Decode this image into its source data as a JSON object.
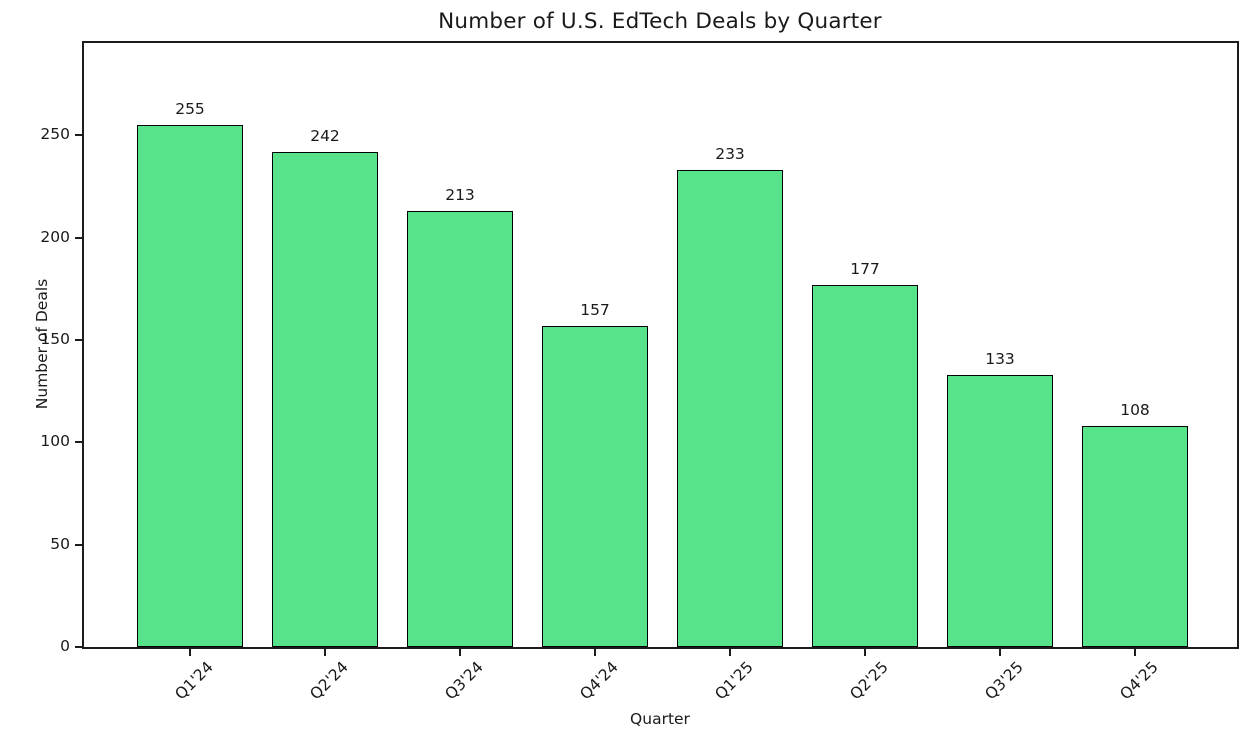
{
  "chart_data": {
    "type": "bar",
    "title": "Number of U.S. EdTech Deals by Quarter",
    "xlabel": "Quarter",
    "ylabel": "Number of Deals",
    "categories": [
      "Q1'24",
      "Q2'24",
      "Q3'24",
      "Q4'24",
      "Q1'25",
      "Q2'25",
      "Q3'25",
      "Q4'25"
    ],
    "values": [
      255,
      242,
      213,
      157,
      233,
      177,
      133,
      108
    ],
    "yticks": [
      0,
      50,
      100,
      150,
      200,
      250
    ],
    "ylim": [
      0,
      295
    ],
    "xtick_rotation_degrees": 45,
    "grid": false,
    "legend_position": "none",
    "value_labels_shown": true,
    "colors": {
      "bar_fill": "#57e389",
      "bar_edge": "#000000",
      "text": "#1a1a1a",
      "background": "#ffffff"
    }
  }
}
